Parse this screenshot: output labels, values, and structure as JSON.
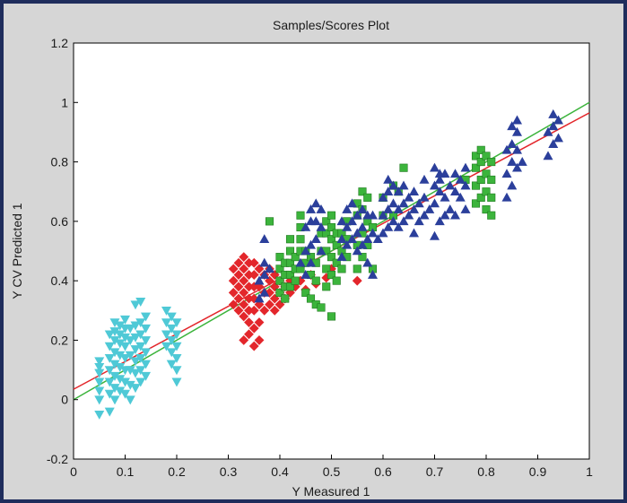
{
  "chart_data": {
    "type": "scatter",
    "title": "Samples/Scores Plot",
    "xlabel": "Y Measured 1",
    "ylabel": "Y CV Predicted 1",
    "xlim": [
      0,
      1
    ],
    "ylim": [
      -0.2,
      1.2
    ],
    "xticks": [
      "0",
      "0.1",
      "0.2",
      "0.3",
      "0.4",
      "0.5",
      "0.6",
      "0.7",
      "0.8",
      "0.9",
      "1"
    ],
    "yticks": [
      "-0.2",
      "0",
      "0.2",
      "0.4",
      "0.6",
      "0.8",
      "1",
      "1.2"
    ],
    "grid": false,
    "series": [
      {
        "marker": "triangle-down",
        "color": "#4fc9d6",
        "x": [
          0.05,
          0.05,
          0.05,
          0.05,
          0.05,
          0.05,
          0.05,
          0.07,
          0.07,
          0.07,
          0.07,
          0.07,
          0.07,
          0.07,
          0.08,
          0.08,
          0.08,
          0.08,
          0.08,
          0.08,
          0.08,
          0.08,
          0.09,
          0.09,
          0.09,
          0.09,
          0.09,
          0.09,
          0.09,
          0.1,
          0.1,
          0.1,
          0.1,
          0.1,
          0.1,
          0.1,
          0.1,
          0.11,
          0.11,
          0.11,
          0.11,
          0.11,
          0.11,
          0.12,
          0.12,
          0.12,
          0.12,
          0.12,
          0.12,
          0.12,
          0.13,
          0.13,
          0.13,
          0.13,
          0.13,
          0.13,
          0.13,
          0.14,
          0.14,
          0.14,
          0.14,
          0.14,
          0.14,
          0.18,
          0.18,
          0.18,
          0.18,
          0.19,
          0.19,
          0.19,
          0.19,
          0.19,
          0.2,
          0.2,
          0.2,
          0.2,
          0.2,
          0.2
        ],
        "y": [
          -0.05,
          0,
          0.03,
          0.06,
          0.09,
          0.11,
          0.13,
          -0.04,
          0.02,
          0.06,
          0.1,
          0.14,
          0.18,
          0.22,
          0,
          0.04,
          0.08,
          0.12,
          0.16,
          0.2,
          0.23,
          0.26,
          0.03,
          0.07,
          0.11,
          0.15,
          0.19,
          0.22,
          0.25,
          0.02,
          0.06,
          0.1,
          0.14,
          0.18,
          0.21,
          0.24,
          0.27,
          0,
          0.05,
          0.1,
          0.15,
          0.2,
          0.24,
          0.04,
          0.09,
          0.13,
          0.17,
          0.21,
          0.25,
          0.32,
          0.06,
          0.1,
          0.14,
          0.18,
          0.22,
          0.26,
          0.33,
          0.08,
          0.12,
          0.16,
          0.2,
          0.24,
          0.28,
          0.18,
          0.22,
          0.26,
          0.3,
          0.12,
          0.16,
          0.2,
          0.24,
          0.28,
          0.06,
          0.1,
          0.14,
          0.18,
          0.22,
          0.26
        ]
      },
      {
        "marker": "diamond",
        "color": "#e3262b",
        "x": [
          0.31,
          0.31,
          0.31,
          0.31,
          0.32,
          0.32,
          0.32,
          0.32,
          0.32,
          0.33,
          0.33,
          0.33,
          0.33,
          0.33,
          0.33,
          0.33,
          0.34,
          0.34,
          0.34,
          0.34,
          0.34,
          0.34,
          0.34,
          0.35,
          0.35,
          0.35,
          0.35,
          0.35,
          0.35,
          0.35,
          0.36,
          0.36,
          0.36,
          0.36,
          0.36,
          0.37,
          0.37,
          0.37,
          0.38,
          0.38,
          0.38,
          0.38,
          0.39,
          0.39,
          0.39,
          0.39,
          0.4,
          0.4,
          0.4,
          0.41,
          0.41,
          0.42,
          0.42,
          0.43,
          0.44,
          0.45,
          0.46,
          0.47,
          0.49,
          0.5,
          0.55
        ],
        "y": [
          0.32,
          0.36,
          0.4,
          0.44,
          0.3,
          0.34,
          0.38,
          0.42,
          0.46,
          0.2,
          0.28,
          0.32,
          0.36,
          0.4,
          0.44,
          0.48,
          0.22,
          0.26,
          0.3,
          0.34,
          0.38,
          0.42,
          0.46,
          0.18,
          0.24,
          0.3,
          0.34,
          0.38,
          0.42,
          0.46,
          0.2,
          0.26,
          0.32,
          0.38,
          0.44,
          0.3,
          0.36,
          0.42,
          0.32,
          0.36,
          0.4,
          0.44,
          0.3,
          0.34,
          0.38,
          0.42,
          0.32,
          0.36,
          0.4,
          0.34,
          0.38,
          0.36,
          0.4,
          0.38,
          0.4,
          0.37,
          0.42,
          0.39,
          0.41,
          0.44,
          0.4
        ]
      },
      {
        "marker": "square",
        "color": "#3cb43c",
        "x": [
          0.38,
          0.4,
          0.4,
          0.4,
          0.4,
          0.41,
          0.41,
          0.41,
          0.41,
          0.42,
          0.42,
          0.42,
          0.42,
          0.42,
          0.43,
          0.43,
          0.43,
          0.44,
          0.44,
          0.44,
          0.44,
          0.44,
          0.45,
          0.45,
          0.45,
          0.46,
          0.46,
          0.46,
          0.47,
          0.47,
          0.47,
          0.48,
          0.48,
          0.48,
          0.49,
          0.49,
          0.49,
          0.49,
          0.49,
          0.5,
          0.5,
          0.5,
          0.5,
          0.5,
          0.5,
          0.51,
          0.51,
          0.51,
          0.51,
          0.52,
          0.52,
          0.52,
          0.53,
          0.53,
          0.53,
          0.55,
          0.55,
          0.55,
          0.55,
          0.56,
          0.56,
          0.56,
          0.56,
          0.57,
          0.57,
          0.57,
          0.58,
          0.58,
          0.6,
          0.6,
          0.62,
          0.62,
          0.63,
          0.64,
          0.76,
          0.78,
          0.78,
          0.78,
          0.78,
          0.79,
          0.79,
          0.79,
          0.79,
          0.8,
          0.8,
          0.8,
          0.8,
          0.81,
          0.81,
          0.81,
          0.81
        ],
        "y": [
          0.6,
          0.36,
          0.4,
          0.44,
          0.48,
          0.34,
          0.38,
          0.42,
          0.46,
          0.38,
          0.42,
          0.46,
          0.5,
          0.54,
          0.4,
          0.44,
          0.48,
          0.44,
          0.5,
          0.54,
          0.58,
          0.62,
          0.36,
          0.46,
          0.5,
          0.34,
          0.42,
          0.48,
          0.32,
          0.4,
          0.46,
          0.31,
          0.5,
          0.56,
          0.38,
          0.44,
          0.5,
          0.56,
          0.6,
          0.28,
          0.42,
          0.48,
          0.54,
          0.58,
          0.62,
          0.4,
          0.46,
          0.52,
          0.56,
          0.44,
          0.5,
          0.56,
          0.48,
          0.54,
          0.6,
          0.44,
          0.52,
          0.62,
          0.66,
          0.48,
          0.56,
          0.64,
          0.7,
          0.52,
          0.6,
          0.68,
          0.44,
          0.58,
          0.62,
          0.68,
          0.62,
          0.72,
          0.7,
          0.78,
          0.74,
          0.66,
          0.72,
          0.78,
          0.82,
          0.68,
          0.74,
          0.8,
          0.84,
          0.64,
          0.7,
          0.76,
          0.82,
          0.62,
          0.68,
          0.74,
          0.8
        ]
      },
      {
        "marker": "triangle-up",
        "color": "#2b3f9b",
        "x": [
          0.36,
          0.36,
          0.37,
          0.37,
          0.37,
          0.37,
          0.38,
          0.44,
          0.45,
          0.45,
          0.45,
          0.46,
          0.46,
          0.46,
          0.46,
          0.47,
          0.47,
          0.47,
          0.48,
          0.48,
          0.48,
          0.52,
          0.52,
          0.52,
          0.53,
          0.53,
          0.53,
          0.54,
          0.54,
          0.54,
          0.55,
          0.55,
          0.55,
          0.56,
          0.56,
          0.56,
          0.57,
          0.57,
          0.57,
          0.58,
          0.58,
          0.58,
          0.59,
          0.6,
          0.6,
          0.6,
          0.61,
          0.61,
          0.61,
          0.61,
          0.62,
          0.62,
          0.62,
          0.63,
          0.63,
          0.63,
          0.64,
          0.64,
          0.64,
          0.65,
          0.65,
          0.66,
          0.66,
          0.66,
          0.67,
          0.67,
          0.68,
          0.68,
          0.68,
          0.69,
          0.7,
          0.7,
          0.7,
          0.7,
          0.71,
          0.71,
          0.71,
          0.71,
          0.72,
          0.72,
          0.72,
          0.73,
          0.73,
          0.74,
          0.74,
          0.74,
          0.75,
          0.75,
          0.76,
          0.76,
          0.76,
          0.84,
          0.84,
          0.84,
          0.85,
          0.85,
          0.85,
          0.85,
          0.86,
          0.86,
          0.86,
          0.86,
          0.87,
          0.92,
          0.92,
          0.93,
          0.93,
          0.93,
          0.94,
          0.94
        ],
        "y": [
          0.34,
          0.4,
          0.36,
          0.42,
          0.46,
          0.54,
          0.44,
          0.46,
          0.42,
          0.5,
          0.58,
          0.46,
          0.52,
          0.6,
          0.64,
          0.54,
          0.6,
          0.66,
          0.5,
          0.58,
          0.64,
          0.48,
          0.54,
          0.6,
          0.52,
          0.58,
          0.64,
          0.54,
          0.6,
          0.66,
          0.5,
          0.56,
          0.62,
          0.52,
          0.58,
          0.64,
          0.46,
          0.54,
          0.62,
          0.42,
          0.56,
          0.62,
          0.54,
          0.56,
          0.62,
          0.68,
          0.58,
          0.64,
          0.7,
          0.74,
          0.6,
          0.66,
          0.72,
          0.58,
          0.64,
          0.7,
          0.6,
          0.66,
          0.72,
          0.62,
          0.68,
          0.56,
          0.64,
          0.7,
          0.6,
          0.66,
          0.62,
          0.68,
          0.74,
          0.64,
          0.55,
          0.66,
          0.72,
          0.78,
          0.6,
          0.7,
          0.74,
          0.76,
          0.62,
          0.68,
          0.76,
          0.64,
          0.72,
          0.62,
          0.7,
          0.76,
          0.68,
          0.74,
          0.64,
          0.72,
          0.78,
          0.68,
          0.76,
          0.84,
          0.72,
          0.8,
          0.86,
          0.92,
          0.78,
          0.84,
          0.9,
          0.94,
          0.8,
          0.82,
          0.9,
          0.86,
          0.92,
          0.96,
          0.88,
          0.94
        ]
      }
    ],
    "lines": [
      {
        "color": "#e3262b",
        "x": [
          0,
          1
        ],
        "y": [
          0.035,
          0.965
        ]
      },
      {
        "color": "#3cb43c",
        "x": [
          0,
          1
        ],
        "y": [
          0.0,
          1.0
        ]
      }
    ]
  }
}
